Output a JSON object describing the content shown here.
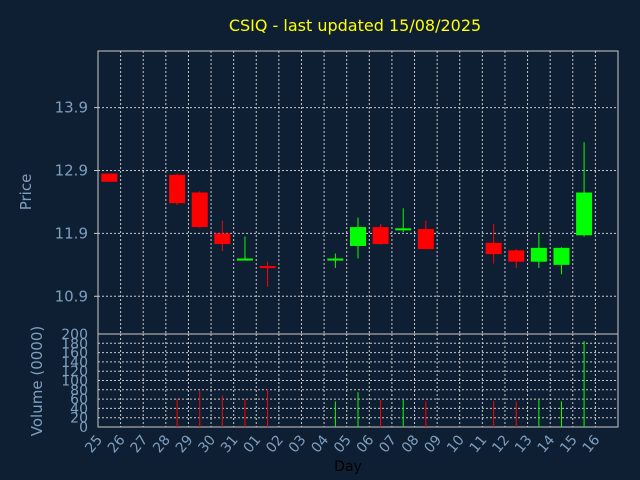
{
  "chart_data": [
    {
      "type": "candlestick",
      "title": "CSIQ - last updated 15/08/2025",
      "ylabel": "Price",
      "xlabel": "",
      "ylim": [
        10.3,
        14.8
      ],
      "yticks": [
        10.9,
        11.9,
        12.9,
        13.9
      ],
      "ytick_labels": [
        "10.9",
        "11.9",
        "12.9",
        "13.9"
      ],
      "grid": true,
      "colors": {
        "up": "#00ff00",
        "down": "#ff0000"
      },
      "candles": [
        {
          "day": "25",
          "open": 12.85,
          "high": 12.85,
          "low": 12.72,
          "close": 12.72
        },
        {
          "day": "28",
          "open": 12.83,
          "high": 12.85,
          "low": 12.35,
          "close": 12.38
        },
        {
          "day": "29",
          "open": 12.55,
          "high": 12.57,
          "low": 11.99,
          "close": 12.0
        },
        {
          "day": "30",
          "open": 11.9,
          "high": 12.1,
          "low": 11.62,
          "close": 11.73
        },
        {
          "day": "31",
          "open": 11.5,
          "high": 11.85,
          "low": 11.5,
          "close": 11.5
        },
        {
          "day": "01",
          "open": 11.38,
          "high": 11.45,
          "low": 11.05,
          "close": 11.35
        },
        {
          "day": "04",
          "open": 11.47,
          "high": 11.58,
          "low": 11.35,
          "close": 11.5
        },
        {
          "day": "05",
          "open": 11.7,
          "high": 12.15,
          "low": 11.5,
          "close": 12.0
        },
        {
          "day": "06",
          "open": 12.0,
          "high": 12.05,
          "low": 11.72,
          "close": 11.73
        },
        {
          "day": "07",
          "open": 11.95,
          "high": 12.3,
          "low": 11.92,
          "close": 11.98
        },
        {
          "day": "08",
          "open": 11.97,
          "high": 12.1,
          "low": 11.65,
          "close": 11.65
        },
        {
          "day": "11",
          "open": 11.75,
          "high": 12.05,
          "low": 11.42,
          "close": 11.57
        },
        {
          "day": "12",
          "open": 11.63,
          "high": 11.65,
          "low": 11.35,
          "close": 11.45
        },
        {
          "day": "13",
          "open": 11.45,
          "high": 11.9,
          "low": 11.35,
          "close": 11.67
        },
        {
          "day": "14",
          "open": 11.4,
          "high": 11.68,
          "low": 11.25,
          "close": 11.67
        },
        {
          "day": "15",
          "open": 11.87,
          "high": 13.35,
          "low": 11.85,
          "close": 12.55
        }
      ]
    },
    {
      "type": "bar",
      "ylabel": "Volume (0000)",
      "xlabel": "Day",
      "ylim": [
        0,
        200
      ],
      "yticks": [
        0,
        20,
        40,
        60,
        80,
        100,
        120,
        140,
        160,
        180,
        200
      ],
      "ytick_labels": [
        "0",
        "20",
        "40",
        "60",
        "80",
        "100",
        "120",
        "140",
        "160",
        "180",
        "200"
      ],
      "categories": [
        "25",
        "26",
        "27",
        "28",
        "29",
        "30",
        "31",
        "01",
        "02",
        "03",
        "04",
        "05",
        "06",
        "07",
        "08",
        "09",
        "10",
        "11",
        "12",
        "13",
        "14",
        "15",
        "16"
      ],
      "bars": [
        {
          "day": "28",
          "value": 60,
          "color": "#ff0000"
        },
        {
          "day": "29",
          "value": 78,
          "color": "#ff0000"
        },
        {
          "day": "30",
          "value": 68,
          "color": "#ff0000"
        },
        {
          "day": "31",
          "value": 60,
          "color": "#ff0000"
        },
        {
          "day": "01",
          "value": 82,
          "color": "#ff0000"
        },
        {
          "day": "04",
          "value": 55,
          "color": "#00ff00"
        },
        {
          "day": "05",
          "value": 75,
          "color": "#00ff00"
        },
        {
          "day": "06",
          "value": 58,
          "color": "#ff0000"
        },
        {
          "day": "07",
          "value": 58,
          "color": "#00ff00"
        },
        {
          "day": "08",
          "value": 55,
          "color": "#ff0000"
        },
        {
          "day": "11",
          "value": 56,
          "color": "#ff0000"
        },
        {
          "day": "12",
          "value": 55,
          "color": "#ff0000"
        },
        {
          "day": "13",
          "value": 60,
          "color": "#00ff00"
        },
        {
          "day": "14",
          "value": 55,
          "color": "#00ff00"
        },
        {
          "day": "15",
          "value": 185,
          "color": "#00ff00"
        }
      ]
    }
  ]
}
